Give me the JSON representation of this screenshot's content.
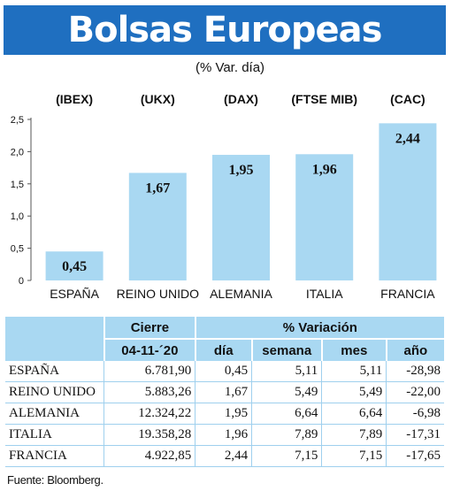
{
  "header": {
    "title": "Bolsas Europeas"
  },
  "subtitle": "(% Var. día)",
  "chart_data": {
    "type": "bar",
    "categories": [
      "ESPAÑA",
      "REINO UNIDO",
      "ALEMANIA",
      "ITALIA",
      "FRANCIA"
    ],
    "indices": [
      "(IBEX)",
      "(UKX)",
      "(DAX)",
      "(FTSE MIB)",
      "(CAC)"
    ],
    "values": [
      0.45,
      1.67,
      1.95,
      1.96,
      2.44
    ],
    "value_labels": [
      "0,45",
      "1,67",
      "1,95",
      "1,96",
      "2,44"
    ],
    "ylim": [
      0,
      2.5
    ],
    "yticks": [
      0,
      0.5,
      1.0,
      1.5,
      2.0,
      2.5
    ],
    "ytick_labels": [
      "0",
      "0,5",
      "1,0",
      "1,5",
      "2,0",
      "2,5"
    ],
    "bar_color": "#a9d8f2",
    "grid": false
  },
  "table": {
    "header_cierre": "Cierre",
    "header_date": "04-11-´20",
    "header_variacion": "% Variación",
    "col_dia": "día",
    "col_semana": "semana",
    "col_mes": "mes",
    "col_anio": "año",
    "rows": [
      {
        "name": "ESPAÑA",
        "cierre": "6.781,90",
        "dia": "0,45",
        "semana": "5,11",
        "mes": "5,11",
        "anio": "-28,98"
      },
      {
        "name": "REINO UNIDO",
        "cierre": "5.883,26",
        "dia": "1,67",
        "semana": "5,49",
        "mes": "5,49",
        "anio": "-22,00"
      },
      {
        "name": "ALEMANIA",
        "cierre": "12.324,22",
        "dia": "1,95",
        "semana": "6,64",
        "mes": "6,64",
        "anio": "-6,98"
      },
      {
        "name": "ITALIA",
        "cierre": "19.358,28",
        "dia": "1,96",
        "semana": "7,89",
        "mes": "7,89",
        "anio": "-17,31"
      },
      {
        "name": "FRANCIA",
        "cierre": "4.922,85",
        "dia": "2,44",
        "semana": "7,15",
        "mes": "7,15",
        "anio": "-17,65"
      }
    ]
  },
  "source": "Fuente: Bloomberg.",
  "colors": {
    "header_bg": "#1f6fc0",
    "bar": "#a9d8f2",
    "table_header": "#a9d8f2"
  }
}
